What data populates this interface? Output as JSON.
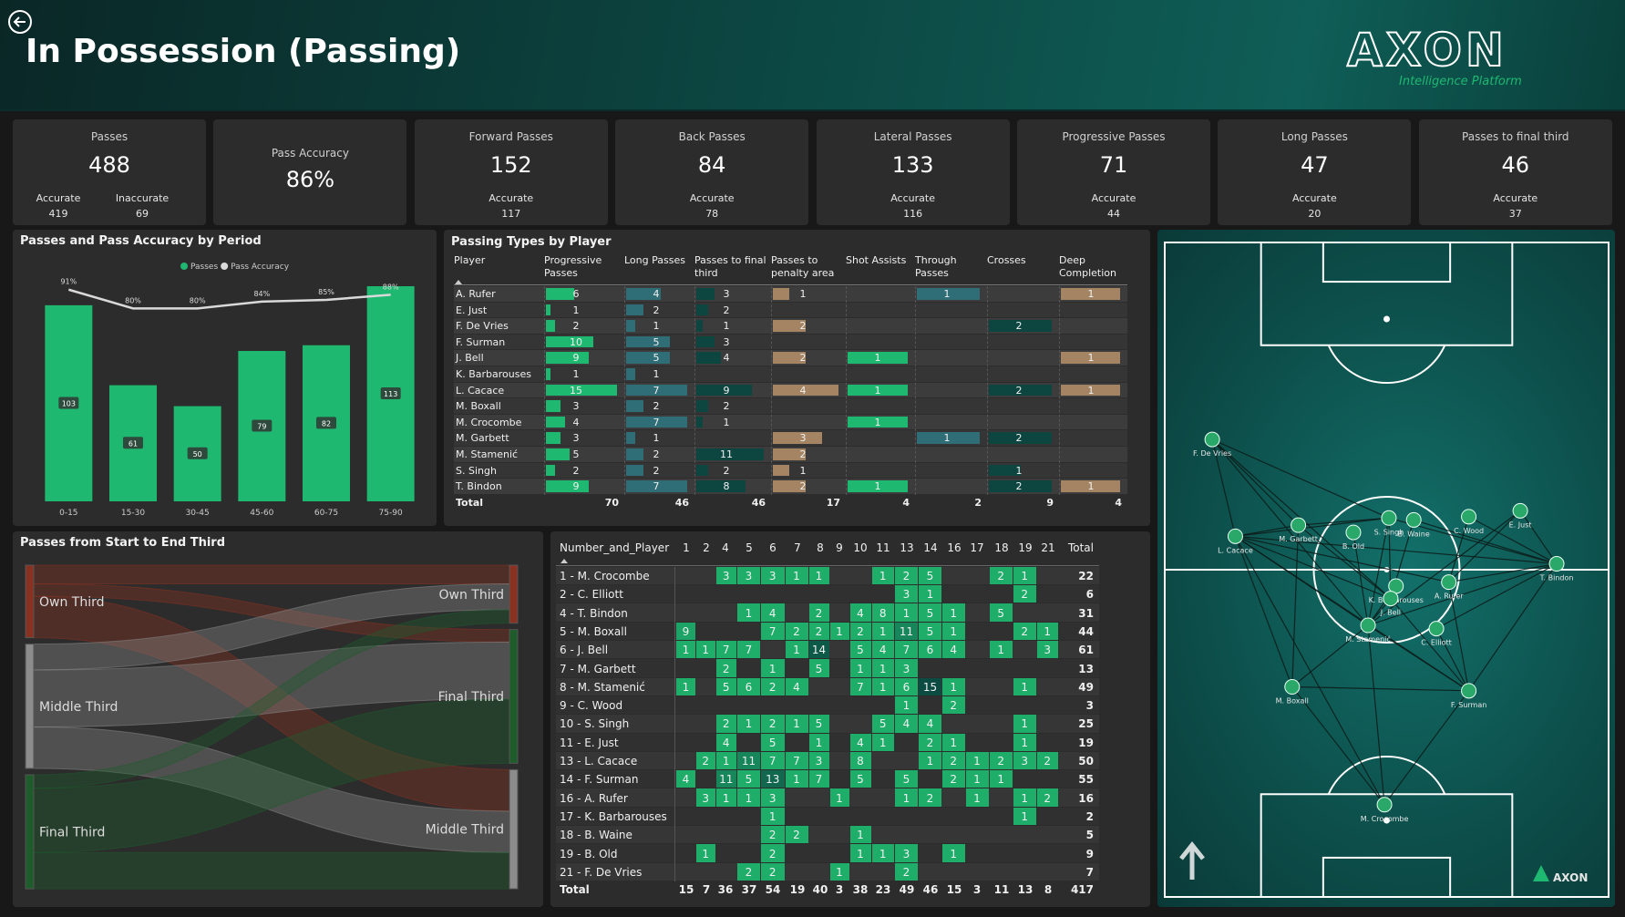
{
  "header": {
    "title": "In Possession (Passing)",
    "logo": "AXON",
    "tagline": "Intelligence Platform"
  },
  "kpis": [
    {
      "label": "Passes",
      "value": 488,
      "details": [
        {
          "label": "Accurate",
          "value": 419
        },
        {
          "label": "Inaccurate",
          "value": 69
        }
      ]
    },
    {
      "label": "Pass Accuracy",
      "value": "86%"
    },
    {
      "label": "Forward Passes",
      "value": 152,
      "details": [
        {
          "label": "Accurate",
          "value": 117
        }
      ]
    },
    {
      "label": "Back Passes",
      "value": 84,
      "details": [
        {
          "label": "Accurate",
          "value": 78
        }
      ]
    },
    {
      "label": "Lateral Passes",
      "value": 133,
      "details": [
        {
          "label": "Accurate",
          "value": 116
        }
      ]
    },
    {
      "label": "Progressive Passes",
      "value": 71,
      "details": [
        {
          "label": "Accurate",
          "value": 44
        }
      ]
    },
    {
      "label": "Long Passes",
      "value": 47,
      "details": [
        {
          "label": "Accurate",
          "value": 20
        }
      ]
    },
    {
      "label": "Passes to final third",
      "value": 46,
      "details": [
        {
          "label": "Accurate",
          "value": 37
        }
      ]
    }
  ],
  "chart_data": [
    {
      "type": "bar",
      "title": "Passes and Pass Accuracy by Period",
      "categories": [
        "0-15",
        "15-30",
        "30-45",
        "45-60",
        "60-75",
        "75-90"
      ],
      "series": [
        {
          "name": "Passes",
          "type": "bar",
          "color": "#1fb870",
          "values": [
            103,
            61,
            50,
            79,
            82,
            113
          ]
        },
        {
          "name": "Pass Accuracy",
          "type": "line",
          "axis": "y2",
          "color": "#d9d9d9",
          "values": [
            91,
            80,
            80,
            84,
            85,
            88
          ],
          "value_labels": [
            "91%",
            "80%",
            "80%",
            "84%",
            "85%",
            "88%"
          ]
        }
      ],
      "ylim": [
        0,
        113
      ],
      "y2lim": [
        -33,
        93
      ]
    },
    {
      "type": "sankey",
      "title": "Passes from Start to End Third",
      "sources": [
        {
          "name": "Own Third",
          "color": "#8a3222"
        },
        {
          "name": "Middle Third",
          "color": "#8c8c8c"
        },
        {
          "name": "Final Third",
          "color": "#1e5c2c"
        }
      ],
      "targets": [
        {
          "name": "Own Third",
          "color": "#8a3222"
        },
        {
          "name": "Final Third",
          "color": "#1e5c2c"
        },
        {
          "name": "Middle Third",
          "color": "#8c8c8c"
        }
      ],
      "links": [
        {
          "source": 0,
          "target": 0,
          "value": 18
        },
        {
          "source": 0,
          "target": 1,
          "value": 12
        },
        {
          "source": 0,
          "target": 2,
          "value": 40
        },
        {
          "source": 1,
          "target": 0,
          "value": 25
        },
        {
          "source": 1,
          "target": 1,
          "value": 55
        },
        {
          "source": 1,
          "target": 2,
          "value": 40
        },
        {
          "source": 2,
          "target": 0,
          "value": 13
        },
        {
          "source": 2,
          "target": 1,
          "value": 62
        },
        {
          "source": 2,
          "target": 2,
          "value": 35
        }
      ]
    }
  ],
  "passing_types": {
    "title": "Passing Types by Player",
    "player_header": "Player",
    "columns": [
      {
        "name": "Progressive Passes",
        "color": "#1fb870"
      },
      {
        "name": "Long Passes",
        "color": "#2f6d77"
      },
      {
        "name": "Passes to final third",
        "color": "#0d4640"
      },
      {
        "name": "Passes to penalty area",
        "color": "#a58463"
      },
      {
        "name": "Shot Assists",
        "color": "#1fb870"
      },
      {
        "name": "Through Passes",
        "color": "#2f6d77"
      },
      {
        "name": "Crosses",
        "color": "#0d4640"
      },
      {
        "name": "Deep Completion",
        "color": "#a58463"
      }
    ],
    "rows": [
      {
        "player": "A. Rufer",
        "values": [
          6,
          4,
          3,
          1,
          null,
          1,
          null,
          1
        ]
      },
      {
        "player": "E. Just",
        "values": [
          1,
          2,
          2,
          null,
          null,
          null,
          null,
          null
        ]
      },
      {
        "player": "F. De Vries",
        "values": [
          2,
          1,
          1,
          2,
          null,
          null,
          2,
          null
        ]
      },
      {
        "player": "F. Surman",
        "values": [
          10,
          5,
          3,
          null,
          null,
          null,
          null,
          null
        ]
      },
      {
        "player": "J. Bell",
        "values": [
          9,
          5,
          4,
          2,
          1,
          null,
          null,
          1
        ]
      },
      {
        "player": "K. Barbarouses",
        "values": [
          1,
          1,
          null,
          null,
          null,
          null,
          null,
          null
        ]
      },
      {
        "player": "L. Cacace",
        "values": [
          15,
          7,
          9,
          4,
          1,
          null,
          2,
          1
        ]
      },
      {
        "player": "M. Boxall",
        "values": [
          3,
          2,
          2,
          null,
          null,
          null,
          null,
          null
        ]
      },
      {
        "player": "M. Crocombe",
        "values": [
          4,
          7,
          1,
          null,
          1,
          null,
          null,
          null
        ]
      },
      {
        "player": "M. Garbett",
        "values": [
          3,
          1,
          null,
          3,
          null,
          1,
          2,
          null
        ]
      },
      {
        "player": "M. Stamenić",
        "values": [
          5,
          2,
          11,
          2,
          null,
          null,
          null,
          null
        ]
      },
      {
        "player": "S. Singh",
        "values": [
          2,
          2,
          2,
          1,
          null,
          null,
          1,
          null
        ]
      },
      {
        "player": "T. Bindon",
        "values": [
          9,
          7,
          8,
          2,
          1,
          null,
          2,
          1
        ]
      }
    ],
    "total_label": "Total",
    "totals": [
      70,
      46,
      46,
      17,
      4,
      2,
      9,
      4
    ]
  },
  "pass_matrix": {
    "corner": "Number_and_Player",
    "columns": [
      1,
      2,
      4,
      5,
      6,
      7,
      8,
      9,
      10,
      11,
      13,
      14,
      16,
      17,
      18,
      19,
      21
    ],
    "total_header": "Total",
    "color_low": "#1fae6a",
    "color_high": "#0b4b42",
    "rows": [
      {
        "label": "1 - M. Crocombe",
        "values": [
          null,
          null,
          3,
          3,
          3,
          1,
          1,
          null,
          null,
          1,
          2,
          5,
          null,
          null,
          2,
          1,
          null
        ],
        "total": 22
      },
      {
        "label": "2 - C. Elliott",
        "values": [
          null,
          null,
          null,
          null,
          null,
          null,
          null,
          null,
          null,
          null,
          3,
          1,
          null,
          null,
          null,
          2,
          null
        ],
        "total": 6
      },
      {
        "label": "4 - T. Bindon",
        "values": [
          null,
          null,
          null,
          1,
          4,
          null,
          2,
          null,
          4,
          8,
          1,
          5,
          1,
          null,
          5,
          null,
          null
        ],
        "total": 31
      },
      {
        "label": "5 - M. Boxall",
        "values": [
          9,
          null,
          null,
          null,
          7,
          2,
          2,
          1,
          2,
          1,
          11,
          5,
          1,
          null,
          null,
          2,
          1
        ],
        "total": 44
      },
      {
        "label": "6 - J. Bell",
        "values": [
          1,
          1,
          7,
          7,
          null,
          1,
          14,
          null,
          5,
          4,
          7,
          6,
          4,
          null,
          1,
          null,
          3
        ],
        "total": 61
      },
      {
        "label": "7 - M. Garbett",
        "values": [
          null,
          null,
          2,
          null,
          1,
          null,
          5,
          null,
          1,
          1,
          3,
          null,
          null,
          null,
          null,
          null,
          null
        ],
        "total": 13
      },
      {
        "label": "8 - M. Stamenić",
        "values": [
          1,
          null,
          5,
          6,
          2,
          4,
          null,
          null,
          7,
          1,
          6,
          15,
          1,
          null,
          null,
          1,
          null
        ],
        "total": 49
      },
      {
        "label": "9 - C. Wood",
        "values": [
          null,
          null,
          null,
          null,
          null,
          null,
          null,
          null,
          null,
          null,
          1,
          null,
          2,
          null,
          null,
          null,
          null
        ],
        "total": 3
      },
      {
        "label": "10 - S. Singh",
        "values": [
          null,
          null,
          2,
          1,
          2,
          1,
          5,
          null,
          null,
          5,
          4,
          4,
          null,
          null,
          null,
          1,
          null
        ],
        "total": 25
      },
      {
        "label": "11 - E. Just",
        "values": [
          null,
          null,
          4,
          null,
          5,
          null,
          1,
          null,
          4,
          1,
          null,
          2,
          1,
          null,
          null,
          1,
          null
        ],
        "total": 19
      },
      {
        "label": "13 - L. Cacace",
        "values": [
          null,
          2,
          1,
          11,
          7,
          7,
          3,
          null,
          8,
          null,
          null,
          1,
          2,
          1,
          2,
          3,
          2
        ],
        "total": 50
      },
      {
        "label": "14 - F. Surman",
        "values": [
          4,
          null,
          11,
          5,
          13,
          1,
          7,
          null,
          5,
          null,
          5,
          null,
          2,
          1,
          1,
          null,
          null
        ],
        "total": 55
      },
      {
        "label": "16 - A. Rufer",
        "values": [
          null,
          3,
          1,
          1,
          3,
          null,
          null,
          1,
          null,
          null,
          1,
          2,
          null,
          1,
          null,
          1,
          2
        ],
        "total": 16
      },
      {
        "label": "17 - K. Barbarouses",
        "values": [
          null,
          null,
          null,
          null,
          1,
          null,
          null,
          null,
          null,
          null,
          null,
          null,
          null,
          null,
          null,
          1,
          null
        ],
        "total": 2
      },
      {
        "label": "18 - B. Waine",
        "values": [
          null,
          null,
          null,
          null,
          2,
          2,
          null,
          null,
          1,
          null,
          null,
          null,
          null,
          null,
          null,
          null,
          null
        ],
        "total": 5
      },
      {
        "label": "19 - B. Old",
        "values": [
          null,
          1,
          null,
          null,
          2,
          null,
          null,
          null,
          1,
          1,
          3,
          null,
          1,
          null,
          null,
          null,
          null
        ],
        "total": 9
      },
      {
        "label": "21 - F. De Vries",
        "values": [
          null,
          null,
          null,
          2,
          2,
          null,
          null,
          1,
          null,
          null,
          2,
          null,
          null,
          null,
          null,
          null,
          null
        ],
        "total": 7
      }
    ],
    "total_label": "Total",
    "totals": [
      15,
      7,
      36,
      37,
      54,
      19,
      40,
      3,
      38,
      23,
      49,
      46,
      15,
      3,
      11,
      13,
      8
    ],
    "grand_total": 417
  },
  "pass_network": {
    "nodes": [
      {
        "name": "F. De Vries",
        "x": 10.7,
        "y": 30.1
      },
      {
        "name": "L. Cacace",
        "x": 15.9,
        "y": 44.9
      },
      {
        "name": "M. Garbett",
        "x": 30.1,
        "y": 43.2
      },
      {
        "name": "B. Old",
        "x": 42.5,
        "y": 44.3
      },
      {
        "name": "S. Singh",
        "x": 50.5,
        "y": 42.1
      },
      {
        "name": "B. Waine",
        "x": 56.1,
        "y": 42.4
      },
      {
        "name": "C. Wood",
        "x": 68.5,
        "y": 41.9
      },
      {
        "name": "E. Just",
        "x": 80.1,
        "y": 41.0
      },
      {
        "name": "T. Bindon",
        "x": 88.3,
        "y": 49.1
      },
      {
        "name": "K. Barbarouses",
        "x": 52.1,
        "y": 52.5
      },
      {
        "name": "J. Bell",
        "x": 50.9,
        "y": 54.4
      },
      {
        "name": "A. Rufer",
        "x": 64.0,
        "y": 51.9
      },
      {
        "name": "M. Stamenić",
        "x": 45.8,
        "y": 58.5
      },
      {
        "name": "C. Elliott",
        "x": 61.2,
        "y": 59.0
      },
      {
        "name": "M. Boxall",
        "x": 28.7,
        "y": 67.9
      },
      {
        "name": "F. Surman",
        "x": 68.5,
        "y": 68.5
      },
      {
        "name": "M. Crocombe",
        "x": 49.5,
        "y": 85.9
      }
    ],
    "links": [
      [
        0,
        1
      ],
      [
        0,
        2
      ],
      [
        0,
        4
      ],
      [
        0,
        10
      ],
      [
        0,
        12
      ],
      [
        1,
        2
      ],
      [
        1,
        4
      ],
      [
        1,
        10
      ],
      [
        1,
        12
      ],
      [
        1,
        14
      ],
      [
        1,
        15
      ],
      [
        1,
        16
      ],
      [
        1,
        8
      ],
      [
        1,
        11
      ],
      [
        2,
        4
      ],
      [
        2,
        10
      ],
      [
        2,
        14
      ],
      [
        3,
        12
      ],
      [
        4,
        8
      ],
      [
        4,
        10
      ],
      [
        4,
        12
      ],
      [
        5,
        8
      ],
      [
        6,
        8
      ],
      [
        7,
        8
      ],
      [
        7,
        11
      ],
      [
        7,
        12
      ],
      [
        8,
        11
      ],
      [
        8,
        15
      ],
      [
        8,
        12
      ],
      [
        8,
        13
      ],
      [
        9,
        12
      ],
      [
        10,
        12
      ],
      [
        10,
        15
      ],
      [
        11,
        15
      ],
      [
        12,
        14
      ],
      [
        12,
        15
      ],
      [
        12,
        16
      ],
      [
        13,
        15
      ],
      [
        14,
        16
      ],
      [
        15,
        16
      ],
      [
        14,
        15
      ],
      [
        6,
        11
      ],
      [
        5,
        10
      ]
    ]
  }
}
